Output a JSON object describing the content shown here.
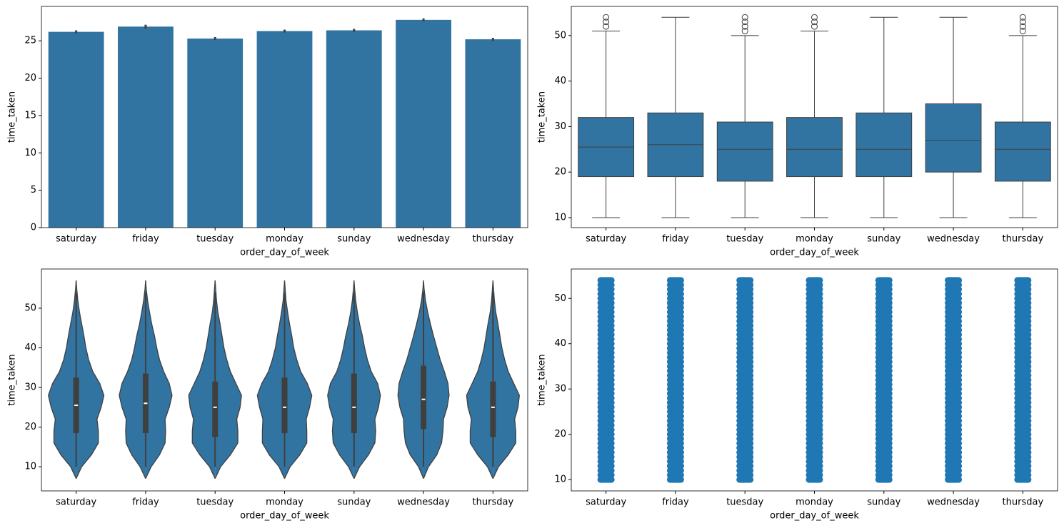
{
  "chart_data": [
    {
      "type": "bar",
      "x_label": "order_day_of_week",
      "y_label": "time_taken",
      "color": "#3274a1",
      "error_color": "#3f3f3f",
      "categories": [
        "saturday",
        "friday",
        "tuesday",
        "monday",
        "sunday",
        "wednesday",
        "thursday"
      ],
      "values": [
        26.2,
        26.9,
        25.3,
        26.3,
        26.4,
        27.8,
        25.2
      ],
      "errors": [
        0.2,
        0.25,
        0.2,
        0.2,
        0.2,
        0.2,
        0.2
      ],
      "ylim": [
        0,
        29.6
      ],
      "yticks": [
        0,
        5,
        10,
        15,
        20,
        25
      ]
    },
    {
      "type": "box",
      "x_label": "order_day_of_week",
      "y_label": "time_taken",
      "color": "#3274a1",
      "edge_color": "#3f3f3f",
      "categories": [
        "saturday",
        "friday",
        "tuesday",
        "monday",
        "sunday",
        "wednesday",
        "thursday"
      ],
      "boxes": [
        {
          "whislo": 10,
          "q1": 19,
          "med": 25.5,
          "q3": 32,
          "whishi": 51,
          "fliers": [
            52,
            53,
            54
          ]
        },
        {
          "whislo": 10,
          "q1": 19,
          "med": 26,
          "q3": 33,
          "whishi": 54,
          "fliers": []
        },
        {
          "whislo": 10,
          "q1": 18,
          "med": 25,
          "q3": 31,
          "whishi": 50,
          "fliers": [
            51,
            52,
            53,
            54
          ]
        },
        {
          "whislo": 10,
          "q1": 19,
          "med": 25,
          "q3": 32,
          "whishi": 51,
          "fliers": [
            52,
            53,
            54
          ]
        },
        {
          "whislo": 10,
          "q1": 19,
          "med": 25,
          "q3": 33,
          "whishi": 54,
          "fliers": []
        },
        {
          "whislo": 10,
          "q1": 20,
          "med": 27,
          "q3": 35,
          "whishi": 54,
          "fliers": []
        },
        {
          "whislo": 10,
          "q1": 18,
          "med": 25,
          "q3": 31,
          "whishi": 50,
          "fliers": [
            51,
            52,
            53,
            54
          ]
        }
      ],
      "ylim": [
        7.8,
        56.4
      ],
      "yticks": [
        10,
        20,
        30,
        40,
        50
      ]
    },
    {
      "type": "violin",
      "x_label": "order_day_of_week",
      "y_label": "time_taken",
      "color": "#3274a1",
      "edge_color": "#3f3f3f",
      "categories": [
        "saturday",
        "friday",
        "tuesday",
        "monday",
        "sunday",
        "wednesday",
        "thursday"
      ],
      "density_y": [
        7,
        10,
        13,
        16,
        19,
        22,
        25,
        28,
        31,
        34,
        37,
        40,
        43,
        46,
        49,
        52,
        55,
        57
      ],
      "violins": [
        {
          "whislo": 10,
          "q1": 18.5,
          "median": 25.5,
          "q3": 32.5,
          "whishi": 54,
          "density": [
            0,
            0.2,
            0.55,
            0.8,
            0.8,
            0.75,
            0.9,
            1.0,
            0.85,
            0.6,
            0.45,
            0.35,
            0.28,
            0.2,
            0.12,
            0.06,
            0.02,
            0
          ]
        },
        {
          "whislo": 10,
          "q1": 18.5,
          "median": 26,
          "q3": 33.5,
          "whishi": 54,
          "density": [
            0,
            0.2,
            0.5,
            0.7,
            0.72,
            0.7,
            0.85,
            0.95,
            0.85,
            0.65,
            0.5,
            0.4,
            0.32,
            0.22,
            0.14,
            0.07,
            0.02,
            0
          ]
        },
        {
          "whislo": 10,
          "q1": 17.5,
          "median": 25,
          "q3": 31.5,
          "whishi": 54,
          "density": [
            0,
            0.2,
            0.55,
            0.82,
            0.82,
            0.78,
            0.9,
            0.95,
            0.75,
            0.55,
            0.42,
            0.32,
            0.25,
            0.18,
            0.1,
            0.05,
            0.02,
            0
          ]
        },
        {
          "whislo": 10,
          "q1": 18.5,
          "median": 25,
          "q3": 32.5,
          "whishi": 54,
          "density": [
            0,
            0.2,
            0.55,
            0.8,
            0.8,
            0.78,
            0.9,
            0.98,
            0.82,
            0.58,
            0.44,
            0.33,
            0.26,
            0.18,
            0.11,
            0.05,
            0.02,
            0
          ]
        },
        {
          "whislo": 10,
          "q1": 18.5,
          "median": 25,
          "q3": 33.5,
          "whishi": 54,
          "density": [
            0,
            0.2,
            0.52,
            0.75,
            0.78,
            0.75,
            0.88,
            0.95,
            0.85,
            0.62,
            0.48,
            0.38,
            0.3,
            0.2,
            0.12,
            0.06,
            0.02,
            0
          ]
        },
        {
          "whislo": 10,
          "q1": 19.5,
          "median": 27,
          "q3": 35.5,
          "whishi": 54,
          "density": [
            0,
            0.18,
            0.48,
            0.65,
            0.7,
            0.72,
            0.85,
            0.92,
            0.88,
            0.75,
            0.6,
            0.48,
            0.36,
            0.25,
            0.15,
            0.07,
            0.02,
            0
          ]
        },
        {
          "whislo": 10,
          "q1": 17.5,
          "median": 25,
          "q3": 31.5,
          "whishi": 54,
          "density": [
            0,
            0.2,
            0.55,
            0.82,
            0.82,
            0.78,
            0.9,
            0.95,
            0.75,
            0.55,
            0.42,
            0.32,
            0.25,
            0.18,
            0.1,
            0.05,
            0.02,
            0
          ]
        }
      ],
      "ylim": [
        3.9,
        59.9
      ],
      "yticks": [
        10,
        20,
        30,
        40,
        50
      ]
    },
    {
      "type": "strip",
      "x_label": "order_day_of_week",
      "y_label": "time_taken",
      "color": "#1f77b4",
      "categories": [
        "saturday",
        "friday",
        "tuesday",
        "monday",
        "sunday",
        "wednesday",
        "thursday"
      ],
      "series": [
        {
          "values": [
            10,
            11,
            12,
            13,
            14,
            15,
            16,
            17,
            18,
            19,
            20,
            21,
            22,
            23,
            24,
            25,
            26,
            27,
            28,
            29,
            30,
            31,
            32,
            33,
            34,
            35,
            36,
            37,
            38,
            39,
            40,
            41,
            42,
            43,
            44,
            45,
            46,
            47,
            48,
            49,
            50,
            51,
            52,
            53,
            54
          ]
        },
        {
          "values": [
            10,
            11,
            12,
            13,
            14,
            15,
            16,
            17,
            18,
            19,
            20,
            21,
            22,
            23,
            24,
            25,
            26,
            27,
            28,
            29,
            30,
            31,
            32,
            33,
            34,
            35,
            36,
            37,
            38,
            39,
            40,
            41,
            42,
            43,
            44,
            45,
            46,
            47,
            48,
            49,
            50,
            51,
            52,
            53,
            54
          ]
        },
        {
          "values": [
            10,
            11,
            12,
            13,
            14,
            15,
            16,
            17,
            18,
            19,
            20,
            21,
            22,
            23,
            24,
            25,
            26,
            27,
            28,
            29,
            30,
            31,
            32,
            33,
            34,
            35,
            36,
            37,
            38,
            39,
            40,
            41,
            42,
            43,
            44,
            45,
            46,
            47,
            48,
            49,
            50,
            51,
            52,
            53,
            54
          ]
        },
        {
          "values": [
            10,
            11,
            12,
            13,
            14,
            15,
            16,
            17,
            18,
            19,
            20,
            21,
            22,
            23,
            24,
            25,
            26,
            27,
            28,
            29,
            30,
            31,
            32,
            33,
            34,
            35,
            36,
            37,
            38,
            39,
            40,
            41,
            42,
            43,
            44,
            45,
            46,
            47,
            48,
            49,
            50,
            51,
            52,
            53,
            54
          ]
        },
        {
          "values": [
            10,
            11,
            12,
            13,
            14,
            15,
            16,
            17,
            18,
            19,
            20,
            21,
            22,
            23,
            24,
            25,
            26,
            27,
            28,
            29,
            30,
            31,
            32,
            33,
            34,
            35,
            36,
            37,
            38,
            39,
            40,
            41,
            42,
            43,
            44,
            45,
            46,
            47,
            48,
            49,
            50,
            51,
            52,
            53,
            54
          ]
        },
        {
          "values": [
            10,
            11,
            12,
            13,
            14,
            15,
            16,
            17,
            18,
            19,
            20,
            21,
            22,
            23,
            24,
            25,
            26,
            27,
            28,
            29,
            30,
            31,
            32,
            33,
            34,
            35,
            36,
            37,
            38,
            39,
            40,
            41,
            42,
            43,
            44,
            45,
            46,
            47,
            48,
            49,
            50,
            51,
            52,
            53,
            54
          ]
        },
        {
          "values": [
            10,
            11,
            12,
            13,
            14,
            15,
            16,
            17,
            18,
            19,
            20,
            21,
            22,
            23,
            24,
            25,
            26,
            27,
            28,
            29,
            30,
            31,
            32,
            33,
            34,
            35,
            36,
            37,
            38,
            39,
            40,
            41,
            42,
            43,
            44,
            45,
            46,
            47,
            48,
            49,
            50,
            51,
            52,
            53,
            54
          ]
        }
      ],
      "ylim": [
        7.5,
        56.5
      ],
      "yticks": [
        10,
        20,
        30,
        40,
        50
      ]
    }
  ]
}
